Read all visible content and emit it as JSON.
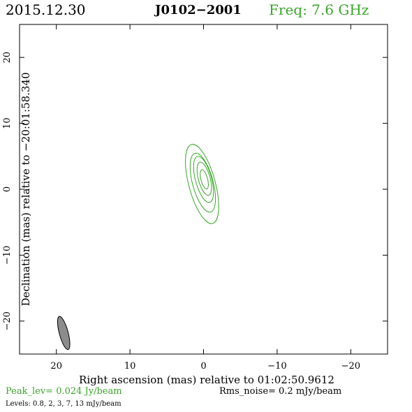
{
  "header": {
    "date": "2015.12.30",
    "source": "J0102−2001",
    "freq": "Freq: 7.6 GHz",
    "freq_color": "#3aa52a"
  },
  "chart_data": {
    "type": "contour",
    "title": "",
    "xlabel": "Right ascension (mas) relative to 01:02:50.9612",
    "ylabel": "Declination (mas) relative to −20:01:58.340",
    "xlim": [
      25,
      -25
    ],
    "ylim": [
      -25,
      25
    ],
    "x_reversed": true,
    "xticks": [
      20,
      10,
      0,
      -10,
      -20
    ],
    "xtick_labels": [
      "20",
      "10",
      "0",
      "−10",
      "−20"
    ],
    "yticks": [
      20,
      10,
      0,
      -10,
      -20
    ],
    "ytick_labels": [
      "20",
      "10",
      "0",
      "−10",
      "−20"
    ],
    "grid": false,
    "contour_color": "#3aa52a",
    "beam_color": "#8c8c8c",
    "contour_levels_mJy": [
      0.8,
      2,
      3,
      7,
      13
    ],
    "contours": [
      {
        "level": 0.8,
        "cx": 0.2,
        "cy": 0.8,
        "a": 6.2,
        "b": 1.8,
        "pa": -15
      },
      {
        "level": 2,
        "cx": 0.1,
        "cy": 1.0,
        "a": 4.6,
        "b": 1.4,
        "pa": -15
      },
      {
        "level": 3,
        "cx": 0.0,
        "cy": 1.5,
        "a": 3.6,
        "b": 1.1,
        "pa": -15
      },
      {
        "level": 7,
        "cx": -0.1,
        "cy": 1.6,
        "a": 2.6,
        "b": 0.8,
        "pa": -15
      },
      {
        "level": 13,
        "cx": -0.1,
        "cy": 1.5,
        "a": 1.5,
        "b": 0.45,
        "pa": -15
      }
    ],
    "beam": {
      "cx": 19.0,
      "cy": -21.8,
      "a": 2.6,
      "b": 0.6,
      "pa": -15
    }
  },
  "footer": {
    "peak": "Peak_lev=  0.024 Jy/beam",
    "rms": "Rms_noise=   0.2 mJy/beam",
    "levels": "Levels: 0.8,    2,    3,    7,   13 mJy/beam"
  }
}
